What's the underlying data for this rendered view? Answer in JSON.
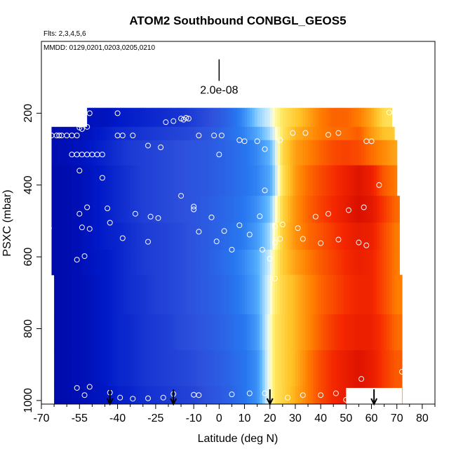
{
  "chart_data": {
    "type": "heatmap",
    "title": "ATOM2 Southbound CONBGL_GEOS5",
    "flights_text": "Flts: 2,3,4,5,6",
    "dates_text": "MMDD: 0129,0201,0203,0205,0210",
    "xlabel": "Latitude (deg N)",
    "ylabel": "PSXC (mbar)",
    "xlim": [
      -70,
      85
    ],
    "ylim": [
      1010,
      0
    ],
    "x_ticks": [
      -70,
      -55,
      -40,
      -25,
      -10,
      0,
      10,
      20,
      30,
      40,
      50,
      60,
      70,
      80
    ],
    "x_tick_labels": [
      "-70",
      "-55",
      "-40",
      "-25",
      "-10",
      "0",
      "10",
      "20",
      "30",
      "40",
      "50",
      "60",
      "70",
      "80"
    ],
    "x_minor_ticks": [
      -65,
      -60,
      -50,
      -45,
      -35,
      -30,
      -20,
      -15,
      -5,
      5,
      15,
      25,
      35,
      45,
      55,
      65,
      75,
      85
    ],
    "y_ticks": [
      200,
      400,
      600,
      800,
      1000
    ],
    "y_tick_labels": [
      "200",
      "400",
      "600",
      "800",
      "1000"
    ],
    "scale_bar": {
      "lat": 0,
      "p_top": 50,
      "p_bottom": 110,
      "label": "2.0e-08"
    },
    "color_scale": "blue-white-yellow-red",
    "value_range": [
      0,
      1
    ],
    "field": {
      "lat_nodes": [
        -66,
        -60,
        -55,
        -50,
        -45,
        -40,
        -35,
        -30,
        -25,
        -20,
        -15,
        -10,
        -5,
        0,
        5,
        10,
        15,
        20,
        22,
        25,
        30,
        35,
        40,
        45,
        50,
        55,
        60,
        65,
        70
      ],
      "pressure_levels": [
        210,
        260,
        320,
        390,
        470,
        545,
        620,
        720,
        820,
        920,
        1000
      ],
      "values": [
        [
          0.04,
          0.04,
          0.05,
          0.06,
          0.06,
          0.08,
          0.09,
          0.1,
          0.11,
          0.12,
          0.13,
          0.15,
          0.17,
          0.2,
          0.25,
          0.32,
          0.42,
          0.48,
          0.55,
          0.62,
          0.68,
          0.74,
          0.8,
          0.83,
          0.83,
          0.8,
          0.74,
          0.64,
          0.62
        ],
        [
          0.04,
          0.05,
          0.05,
          0.07,
          0.09,
          0.11,
          0.12,
          0.13,
          0.14,
          0.15,
          0.16,
          0.17,
          0.19,
          0.22,
          0.26,
          0.3,
          0.36,
          0.44,
          0.5,
          0.62,
          0.72,
          0.76,
          0.8,
          0.82,
          0.82,
          0.84,
          0.76,
          0.7,
          0.68
        ],
        [
          0.04,
          0.05,
          0.06,
          0.08,
          0.1,
          0.12,
          0.14,
          0.15,
          0.16,
          0.17,
          0.18,
          0.19,
          0.2,
          0.22,
          0.24,
          0.27,
          0.31,
          0.38,
          0.46,
          0.65,
          0.75,
          0.79,
          0.83,
          0.86,
          0.87,
          0.86,
          0.82,
          0.78,
          0.74
        ],
        [
          0.03,
          0.04,
          0.05,
          0.07,
          0.09,
          0.11,
          0.13,
          0.15,
          0.16,
          0.17,
          0.18,
          0.19,
          0.2,
          0.22,
          0.24,
          0.27,
          0.3,
          0.36,
          0.44,
          0.63,
          0.76,
          0.82,
          0.86,
          0.89,
          0.92,
          0.95,
          0.92,
          0.84,
          0.8
        ],
        [
          0.03,
          0.04,
          0.05,
          0.07,
          0.09,
          0.11,
          0.13,
          0.15,
          0.16,
          0.17,
          0.18,
          0.19,
          0.21,
          0.23,
          0.25,
          0.28,
          0.32,
          0.4,
          0.5,
          0.66,
          0.77,
          0.83,
          0.87,
          0.9,
          0.93,
          0.96,
          0.94,
          0.88,
          0.82
        ],
        [
          0.03,
          0.04,
          0.05,
          0.07,
          0.09,
          0.1,
          0.12,
          0.14,
          0.15,
          0.16,
          0.17,
          0.19,
          0.21,
          0.23,
          0.26,
          0.29,
          0.34,
          0.44,
          0.54,
          0.68,
          0.77,
          0.82,
          0.85,
          0.88,
          0.91,
          0.93,
          0.92,
          0.86,
          0.8
        ],
        [
          0.03,
          0.04,
          0.05,
          0.07,
          0.08,
          0.1,
          0.12,
          0.14,
          0.15,
          0.16,
          0.17,
          0.19,
          0.21,
          0.24,
          0.27,
          0.31,
          0.37,
          0.48,
          0.58,
          0.68,
          0.75,
          0.8,
          0.84,
          0.87,
          0.9,
          0.92,
          0.91,
          0.86,
          0.8
        ],
        [
          0.03,
          0.04,
          0.05,
          0.06,
          0.08,
          0.1,
          0.12,
          0.13,
          0.15,
          0.16,
          0.17,
          0.19,
          0.21,
          0.23,
          0.26,
          0.3,
          0.36,
          0.5,
          0.6,
          0.66,
          0.72,
          0.78,
          0.83,
          0.86,
          0.89,
          0.91,
          0.91,
          0.86,
          0.8
        ],
        [
          0.03,
          0.04,
          0.05,
          0.06,
          0.08,
          0.1,
          0.11,
          0.13,
          0.14,
          0.15,
          0.17,
          0.18,
          0.2,
          0.22,
          0.25,
          0.28,
          0.34,
          0.52,
          0.62,
          0.66,
          0.72,
          0.78,
          0.84,
          0.88,
          0.91,
          0.92,
          0.92,
          0.88,
          0.82
        ],
        [
          0.03,
          0.04,
          0.05,
          0.06,
          0.08,
          0.1,
          0.11,
          0.13,
          0.14,
          0.15,
          0.16,
          0.17,
          0.19,
          0.21,
          0.24,
          0.27,
          0.32,
          0.52,
          0.62,
          0.66,
          0.72,
          0.8,
          0.86,
          0.9,
          0.93,
          0.95,
          0.93,
          0.88,
          0.84
        ],
        [
          0.03,
          0.04,
          0.05,
          0.06,
          0.07,
          0.09,
          0.1,
          0.12,
          0.13,
          0.14,
          0.15,
          0.16,
          0.18,
          0.2,
          0.23,
          0.27,
          0.32,
          0.52,
          0.62,
          0.66,
          0.73,
          0.8,
          0.86,
          0.9,
          0.93,
          0.95,
          0.93,
          0.88,
          0.84
        ]
      ]
    },
    "observations": [
      [
        -57,
        200
      ],
      [
        -54,
        200
      ],
      [
        -51,
        200
      ],
      [
        -40,
        200
      ],
      [
        -21,
        225
      ],
      [
        -18,
        222
      ],
      [
        -15,
        215
      ],
      [
        -14,
        218
      ],
      [
        -13,
        213
      ],
      [
        -12,
        215
      ],
      [
        67,
        198
      ],
      [
        69,
        198
      ],
      [
        -68,
        238
      ],
      [
        -55,
        232
      ],
      [
        -55,
        240
      ],
      [
        -54,
        244
      ],
      [
        -52,
        238
      ],
      [
        -40,
        262
      ],
      [
        -38,
        262
      ],
      [
        -34,
        262
      ],
      [
        -2,
        262
      ],
      [
        1,
        262
      ],
      [
        -8,
        262
      ],
      [
        -68,
        262
      ],
      [
        -66,
        262
      ],
      [
        -64,
        262
      ],
      [
        -63,
        262
      ],
      [
        -62,
        262
      ],
      [
        -60,
        262
      ],
      [
        -58,
        262
      ],
      [
        -56,
        262
      ],
      [
        -28,
        290
      ],
      [
        -23,
        295
      ],
      [
        8,
        275
      ],
      [
        10,
        278
      ],
      [
        15,
        278
      ],
      [
        18,
        300
      ],
      [
        24,
        275
      ],
      [
        29,
        255
      ],
      [
        34,
        255
      ],
      [
        43,
        260
      ],
      [
        47,
        255
      ],
      [
        58,
        278
      ],
      [
        60,
        278
      ],
      [
        -58,
        315
      ],
      [
        -56,
        315
      ],
      [
        -54,
        315
      ],
      [
        -52,
        315
      ],
      [
        -50,
        315
      ],
      [
        -48,
        315
      ],
      [
        -46,
        315
      ],
      [
        0,
        315
      ],
      [
        -55,
        360
      ],
      [
        -46,
        380
      ],
      [
        63,
        400
      ],
      [
        18,
        415
      ],
      [
        -15,
        430
      ],
      [
        -55,
        480
      ],
      [
        -52,
        462
      ],
      [
        -44,
        465
      ],
      [
        -33,
        480
      ],
      [
        -27,
        488
      ],
      [
        -24,
        492
      ],
      [
        -10,
        460
      ],
      [
        -10,
        468
      ],
      [
        -3,
        490
      ],
      [
        16,
        487
      ],
      [
        22,
        515
      ],
      [
        25,
        510
      ],
      [
        31,
        520
      ],
      [
        38,
        488
      ],
      [
        43,
        480
      ],
      [
        51,
        470
      ],
      [
        57,
        462
      ],
      [
        -68,
        510
      ],
      [
        -67,
        520
      ],
      [
        -54,
        518
      ],
      [
        -51,
        522
      ],
      [
        -43,
        505
      ],
      [
        -8,
        530
      ],
      [
        2,
        528
      ],
      [
        8,
        512
      ],
      [
        12,
        538
      ],
      [
        22,
        560
      ],
      [
        24,
        550
      ],
      [
        33,
        550
      ],
      [
        40,
        562
      ],
      [
        47,
        552
      ],
      [
        55,
        560
      ],
      [
        58,
        568
      ],
      [
        -38,
        548
      ],
      [
        -28,
        558
      ],
      [
        -1,
        557
      ],
      [
        5,
        580
      ],
      [
        17,
        580
      ],
      [
        20,
        605
      ],
      [
        -56,
        608
      ],
      [
        -53,
        598
      ],
      [
        22,
        660
      ],
      [
        -68,
        968
      ],
      [
        -56,
        965
      ],
      [
        -53,
        985
      ],
      [
        -51,
        962
      ],
      [
        -43,
        978
      ],
      [
        -39,
        992
      ],
      [
        -34,
        995
      ],
      [
        -28,
        994
      ],
      [
        -22,
        992
      ],
      [
        -18,
        982
      ],
      [
        -10,
        984
      ],
      [
        -8,
        985
      ],
      [
        5,
        983
      ],
      [
        12,
        980
      ],
      [
        18,
        980
      ],
      [
        27,
        992
      ],
      [
        33,
        985
      ],
      [
        40,
        985
      ],
      [
        46,
        980
      ],
      [
        56,
        940
      ],
      [
        72,
        920
      ],
      [
        50,
        998
      ]
    ],
    "arrows": [
      -43,
      -18,
      20,
      61
    ]
  }
}
